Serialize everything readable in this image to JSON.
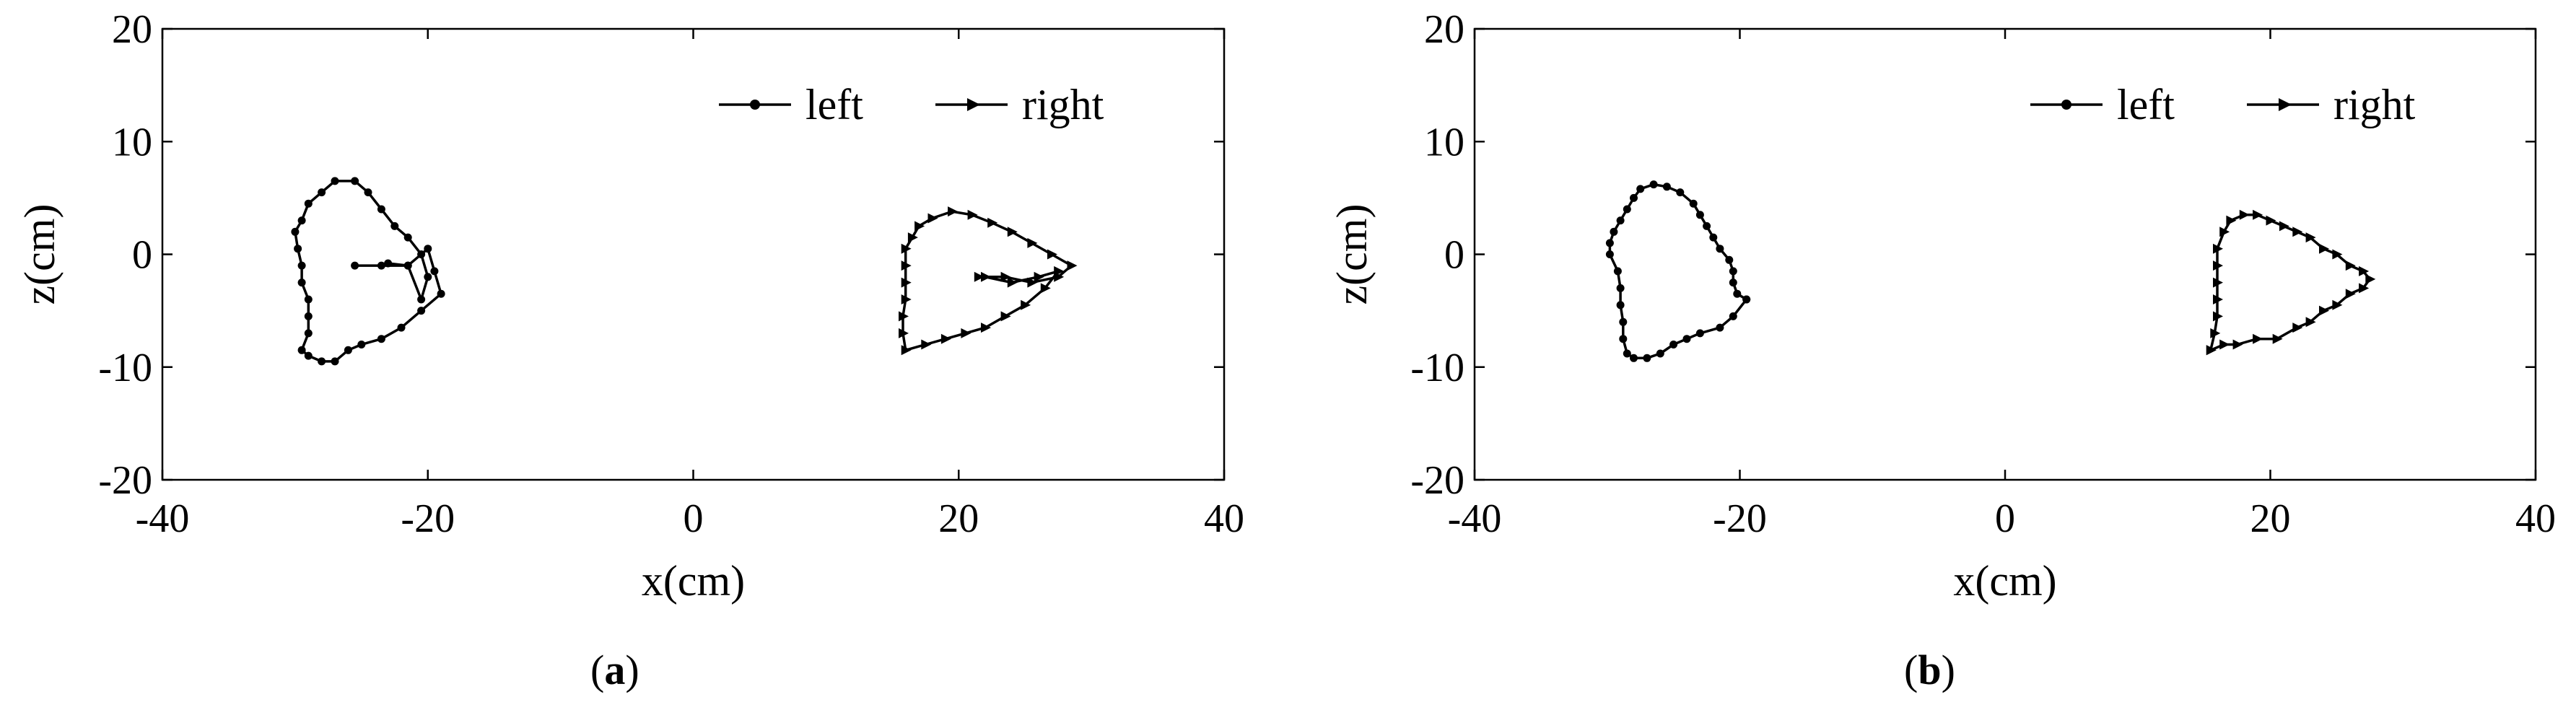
{
  "chart_data": [
    {
      "panel_label": "a",
      "type": "line",
      "xlabel": "x(cm)",
      "ylabel": "z(cm)",
      "xlim": [
        -40,
        40
      ],
      "ylim": [
        -20,
        20
      ],
      "xticks": [
        -40,
        -20,
        0,
        20,
        40
      ],
      "yticks": [
        -20,
        -10,
        0,
        10,
        20
      ],
      "grid": false,
      "legend": "top-right",
      "series": [
        {
          "name": "left",
          "marker": "circle",
          "points": [
            [
              -25.5,
              -1.0
            ],
            [
              -23.5,
              -1.0
            ],
            [
              -21.5,
              -1.0
            ],
            [
              -20.0,
              0.5
            ],
            [
              -19.5,
              -1.5
            ],
            [
              -19.0,
              -3.5
            ],
            [
              -20.5,
              -5.0
            ],
            [
              -22.0,
              -6.5
            ],
            [
              -23.5,
              -7.5
            ],
            [
              -25.0,
              -8.0
            ],
            [
              -26.0,
              -8.5
            ],
            [
              -27.0,
              -9.5
            ],
            [
              -28.0,
              -9.5
            ],
            [
              -29.0,
              -9.0
            ],
            [
              -29.5,
              -8.5
            ],
            [
              -29.0,
              -7.0
            ],
            [
              -29.0,
              -5.5
            ],
            [
              -29.0,
              -4.0
            ],
            [
              -29.5,
              -2.5
            ],
            [
              -29.5,
              -1.0
            ],
            [
              -29.8,
              0.5
            ],
            [
              -30.0,
              2.0
            ],
            [
              -29.5,
              3.0
            ],
            [
              -29.0,
              4.5
            ],
            [
              -28.0,
              5.5
            ],
            [
              -27.0,
              6.5
            ],
            [
              -25.5,
              6.5
            ],
            [
              -24.5,
              5.5
            ],
            [
              -23.5,
              4.0
            ],
            [
              -22.5,
              2.5
            ],
            [
              -21.5,
              1.5
            ],
            [
              -20.5,
              0.0
            ],
            [
              -20.0,
              -2.0
            ],
            [
              -20.5,
              -4.0
            ],
            [
              -21.5,
              -1.0
            ],
            [
              -23.0,
              -0.8
            ]
          ]
        },
        {
          "name": "right",
          "marker": "triangle-right",
          "points": [
            [
              21.5,
              -2.0
            ],
            [
              23.5,
              -2.0
            ],
            [
              25.5,
              -2.5
            ],
            [
              27.5,
              -2.0
            ],
            [
              28.5,
              -1.0
            ],
            [
              27.0,
              0.0
            ],
            [
              25.5,
              1.0
            ],
            [
              24.0,
              2.0
            ],
            [
              22.5,
              2.8
            ],
            [
              21.0,
              3.5
            ],
            [
              19.5,
              3.8
            ],
            [
              18.0,
              3.2
            ],
            [
              17.0,
              2.5
            ],
            [
              16.5,
              1.5
            ],
            [
              16.0,
              0.5
            ],
            [
              16.0,
              -1.0
            ],
            [
              16.0,
              -2.5
            ],
            [
              16.0,
              -4.0
            ],
            [
              15.8,
              -5.5
            ],
            [
              15.8,
              -7.0
            ],
            [
              16.0,
              -8.5
            ],
            [
              17.5,
              -8.0
            ],
            [
              19.0,
              -7.5
            ],
            [
              20.5,
              -7.0
            ],
            [
              22.0,
              -6.5
            ],
            [
              23.5,
              -5.5
            ],
            [
              25.0,
              -4.5
            ],
            [
              26.5,
              -3.0
            ],
            [
              27.5,
              -1.5
            ],
            [
              26.0,
              -2.0
            ],
            [
              24.0,
              -2.5
            ],
            [
              22.0,
              -2.0
            ]
          ]
        }
      ]
    },
    {
      "panel_label": "b",
      "type": "line",
      "xlabel": "x(cm)",
      "ylabel": "z(cm)",
      "xlim": [
        -40,
        40
      ],
      "ylim": [
        -20,
        20
      ],
      "xticks": [
        -40,
        -20,
        0,
        20,
        40
      ],
      "yticks": [
        -20,
        -10,
        0,
        10,
        20
      ],
      "grid": false,
      "legend": "top-right",
      "series": [
        {
          "name": "left",
          "marker": "circle",
          "points": [
            [
              -19.5,
              -4.0
            ],
            [
              -20.5,
              -5.5
            ],
            [
              -21.5,
              -6.5
            ],
            [
              -23.0,
              -7.0
            ],
            [
              -24.0,
              -7.5
            ],
            [
              -25.0,
              -8.0
            ],
            [
              -26.0,
              -8.8
            ],
            [
              -27.0,
              -9.2
            ],
            [
              -28.0,
              -9.2
            ],
            [
              -28.5,
              -8.8
            ],
            [
              -28.8,
              -7.5
            ],
            [
              -28.8,
              -6.0
            ],
            [
              -29.0,
              -4.5
            ],
            [
              -29.0,
              -3.0
            ],
            [
              -29.2,
              -1.5
            ],
            [
              -29.8,
              0.0
            ],
            [
              -29.8,
              1.0
            ],
            [
              -29.5,
              2.0
            ],
            [
              -29.0,
              3.0
            ],
            [
              -28.5,
              4.0
            ],
            [
              -28.0,
              5.0
            ],
            [
              -27.5,
              5.8
            ],
            [
              -26.5,
              6.2
            ],
            [
              -25.5,
              6.0
            ],
            [
              -24.5,
              5.5
            ],
            [
              -23.5,
              4.5
            ],
            [
              -23.0,
              3.5
            ],
            [
              -22.5,
              2.5
            ],
            [
              -22.0,
              1.5
            ],
            [
              -21.5,
              0.5
            ],
            [
              -20.8,
              -0.5
            ],
            [
              -20.5,
              -1.5
            ],
            [
              -20.5,
              -2.5
            ],
            [
              -20.2,
              -3.5
            ],
            [
              -19.5,
              -4.0
            ]
          ]
        },
        {
          "name": "right",
          "marker": "triangle-right",
          "points": [
            [
              15.5,
              -8.5
            ],
            [
              16.5,
              -8.0
            ],
            [
              17.5,
              -8.0
            ],
            [
              19.0,
              -7.5
            ],
            [
              20.5,
              -7.5
            ],
            [
              22.0,
              -6.5
            ],
            [
              23.0,
              -6.0
            ],
            [
              24.0,
              -5.0
            ],
            [
              25.0,
              -4.5
            ],
            [
              26.0,
              -3.5
            ],
            [
              27.0,
              -3.0
            ],
            [
              27.5,
              -2.2
            ],
            [
              27.0,
              -1.5
            ],
            [
              26.0,
              -1.0
            ],
            [
              25.0,
              0.0
            ],
            [
              24.0,
              0.5
            ],
            [
              23.0,
              1.5
            ],
            [
              22.0,
              2.0
            ],
            [
              21.0,
              2.5
            ],
            [
              20.0,
              3.0
            ],
            [
              19.0,
              3.5
            ],
            [
              18.0,
              3.5
            ],
            [
              17.0,
              3.0
            ],
            [
              16.5,
              2.0
            ],
            [
              16.0,
              0.5
            ],
            [
              16.0,
              -1.0
            ],
            [
              16.0,
              -2.5
            ],
            [
              16.0,
              -4.0
            ],
            [
              16.0,
              -5.5
            ],
            [
              15.8,
              -7.0
            ],
            [
              15.5,
              -8.5
            ]
          ]
        }
      ]
    }
  ]
}
